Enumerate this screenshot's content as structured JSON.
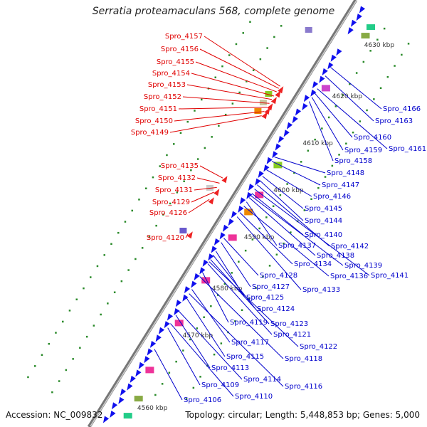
{
  "title": "Serratia proteamaculans 568, complete genome",
  "accession": "Accession: NC_009832",
  "topology": "Topology: circular; Length: 5,448,853 bp; Genes: 5,000",
  "kbp_labels": [
    {
      "text": "4560 kbp",
      "pos": 0.08
    },
    {
      "text": "4570 kbp",
      "pos": 0.25
    },
    {
      "text": "4580 kbp",
      "pos": 0.36
    },
    {
      "text": "4590 kbp",
      "pos": 0.48
    },
    {
      "text": "4600 kbp",
      "pos": 0.59
    },
    {
      "text": "4610 kbp",
      "pos": 0.7
    },
    {
      "text": "4620 kbp",
      "pos": 0.81
    },
    {
      "text": "4630 kbp",
      "pos": 0.93
    }
  ],
  "left_genes": [
    {
      "name": "Spro_4157",
      "pos": 0.775
    },
    {
      "name": "Spro_4156",
      "pos": 0.77
    },
    {
      "name": "Spro_4155",
      "pos": 0.762
    },
    {
      "name": "Spro_4154",
      "pos": 0.752
    },
    {
      "name": "Spro_4153",
      "pos": 0.744
    },
    {
      "name": "Spro_4152",
      "pos": 0.735
    },
    {
      "name": "Spro_4151",
      "pos": 0.726
    },
    {
      "name": "Spro_4150",
      "pos": 0.716
    },
    {
      "name": "Spro_4149",
      "pos": 0.706
    },
    {
      "name": "Spro_4135",
      "pos": 0.56
    },
    {
      "name": "Spro_4132",
      "pos": 0.548
    },
    {
      "name": "Spro_4131",
      "pos": 0.538
    },
    {
      "name": "Spro_4129",
      "pos": 0.527
    },
    {
      "name": "Spro_4126",
      "pos": 0.51
    },
    {
      "name": "Spro_4120",
      "pos": 0.43
    }
  ],
  "right_genes": [
    {
      "name": "Spro_4166",
      "pos": 0.86
    },
    {
      "name": "Spro_4163",
      "pos": 0.84
    },
    {
      "name": "Spro_4161",
      "pos": 0.81
    },
    {
      "name": "Spro_4160",
      "pos": 0.8
    },
    {
      "name": "Spro_4159",
      "pos": 0.79
    },
    {
      "name": "Spro_4158",
      "pos": 0.78
    },
    {
      "name": "Spro_4148",
      "pos": 0.65
    },
    {
      "name": "Spro_4147",
      "pos": 0.64
    },
    {
      "name": "Spro_4146",
      "pos": 0.62
    },
    {
      "name": "Spro_4145",
      "pos": 0.605
    },
    {
      "name": "Spro_4144",
      "pos": 0.595
    },
    {
      "name": "Spro_4142",
      "pos": 0.585
    },
    {
      "name": "Spro_4141",
      "pos": 0.575
    },
    {
      "name": "Spro_4140",
      "pos": 0.565
    },
    {
      "name": "Spro_4139",
      "pos": 0.56
    },
    {
      "name": "Spro_4138",
      "pos": 0.555
    },
    {
      "name": "Spro_4137",
      "pos": 0.545
    },
    {
      "name": "Spro_4136",
      "pos": 0.535
    },
    {
      "name": "Spro_4134",
      "pos": 0.52
    },
    {
      "name": "Spro_4133",
      "pos": 0.51
    },
    {
      "name": "Spro_4128",
      "pos": 0.46
    },
    {
      "name": "Spro_4127",
      "pos": 0.45
    },
    {
      "name": "Spro_4125",
      "pos": 0.43
    },
    {
      "name": "Spro_4124",
      "pos": 0.42
    },
    {
      "name": "Spro_4123",
      "pos": 0.41
    },
    {
      "name": "Spro_4122",
      "pos": 0.405
    },
    {
      "name": "Spro_4121",
      "pos": 0.4
    },
    {
      "name": "Spro_4119",
      "pos": 0.38
    },
    {
      "name": "Spro_4118",
      "pos": 0.37
    },
    {
      "name": "Spro_4117",
      "pos": 0.34
    },
    {
      "name": "Spro_4116",
      "pos": 0.33
    },
    {
      "name": "Spro_4115",
      "pos": 0.32
    },
    {
      "name": "Spro_4114",
      "pos": 0.29
    },
    {
      "name": "Spro_4113",
      "pos": 0.28
    },
    {
      "name": "Spro_4110",
      "pos": 0.26
    },
    {
      "name": "Spro_4109",
      "pos": 0.25
    },
    {
      "name": "Spro_4106",
      "pos": 0.2
    }
  ],
  "colors": {
    "left_label": "#e00000",
    "right_label": "#0000cc",
    "backbone": "#888888",
    "forward_gene": "#ee2222",
    "reverse_gene": "#1010ee",
    "tick": "#2a8a2a"
  }
}
